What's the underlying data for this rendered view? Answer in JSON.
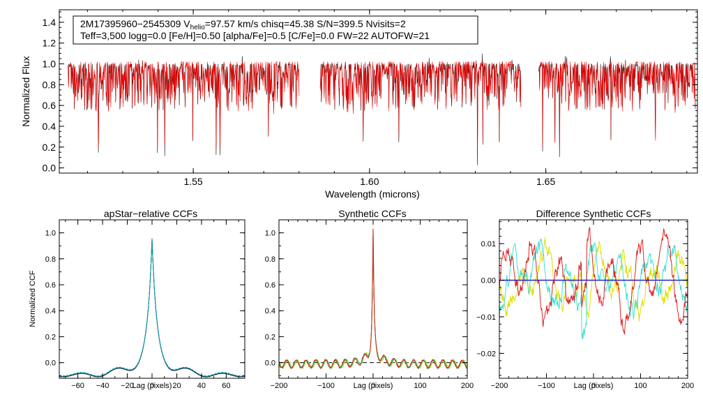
{
  "spectrum": {
    "type": "line",
    "info_line1_pre": "2M17395960−2545309  V",
    "info_line1_sub": "helio",
    "info_line1_post": "=97.57 km/s  chisq=45.38  S/N=399.5  Nvisits=2",
    "info_line2": "Teff=3,500 logg=0.0 [Fe/H]=0.50 [alpha/Fe]=0.5 [C/Fe]=0.0 FW=22 AUTOFW=21",
    "xlabel": "Wavelength (microns)",
    "ylabel": "Normalized Flux",
    "xlim": [
      1.512,
      1.693
    ],
    "ylim": [
      -0.05,
      1.52
    ],
    "xticks": [
      "1.55",
      "1.60",
      "1.65"
    ],
    "xtick_values": [
      1.55,
      1.6,
      1.65
    ],
    "yticks": [
      "0.0",
      "0.2",
      "0.4",
      "0.6",
      "0.8",
      "1.0",
      "1.2",
      "1.4"
    ],
    "ytick_values": [
      0.0,
      0.2,
      0.4,
      0.6,
      0.8,
      1.0,
      1.2,
      1.4
    ],
    "chips": [
      [
        1.5145,
        1.58
      ],
      [
        1.586,
        1.643
      ],
      [
        1.648,
        1.696
      ]
    ],
    "series": [
      {
        "name": "observed spectrum",
        "color": "#000000"
      },
      {
        "name": "synthetic model",
        "color": "#ff0000"
      }
    ]
  },
  "ccf_apstar": {
    "type": "line",
    "title": "apStar−relative CCFs",
    "xlabel": "Lag (pixels)",
    "ylabel": "Normalized CCF",
    "xlim": [
      -75,
      75
    ],
    "ylim": [
      -0.12,
      1.1
    ],
    "xticks": [
      "−60",
      "−40",
      "−20",
      "0",
      "20",
      "40",
      "60"
    ],
    "xtick_values": [
      -60,
      -40,
      -20,
      0,
      20,
      40,
      60
    ],
    "yticks": [
      "0.0",
      "0.2",
      "0.4",
      "0.6",
      "0.8",
      "1.0"
    ],
    "ytick_values": [
      0.0,
      0.2,
      0.4,
      0.6,
      0.8,
      1.0
    ],
    "series": [
      {
        "name": "visit CCF",
        "color": "#000000"
      },
      {
        "name": "visit CCF 2",
        "color": "#1e7fa8"
      },
      {
        "name": "visit CCF 3",
        "color": "#00b0b0"
      }
    ]
  },
  "ccf_synth": {
    "type": "line",
    "title": "Synthetic CCFs",
    "xlabel": "Lag (pixels)",
    "xlim": [
      -200,
      200
    ],
    "ylim": [
      -0.12,
      1.1
    ],
    "xticks": [
      "−200",
      "−100",
      "0",
      "100",
      "200"
    ],
    "xtick_values": [
      -200,
      -100,
      0,
      100,
      200
    ],
    "yticks": [
      "0.0",
      "0.2",
      "0.4",
      "0.6",
      "0.8",
      "1.0"
    ],
    "ytick_values": [
      0.0,
      0.2,
      0.4,
      0.6,
      0.8,
      1.0
    ],
    "zero_line": 0.0,
    "series": [
      {
        "name": "CCF yellow",
        "color": "#d8d800"
      },
      {
        "name": "CCF cyan",
        "color": "#40e0d0"
      },
      {
        "name": "CCF green",
        "color": "#22aa22"
      },
      {
        "name": "CCF red",
        "color": "#dd2222"
      }
    ]
  },
  "ccf_diff": {
    "type": "line",
    "title": "Difference Synthetic CCFs",
    "xlabel": "Lag (pixels)",
    "xlim": [
      -200,
      200
    ],
    "ylim": [
      -0.0268,
      0.0165
    ],
    "xticks": [
      "−200",
      "−100",
      "0",
      "100",
      "200"
    ],
    "xtick_values": [
      -200,
      -100,
      0,
      100,
      200
    ],
    "yticks": [
      "−0.02",
      "−0.01",
      "0.00",
      "0.01"
    ],
    "ytick_values": [
      -0.02,
      -0.01,
      0.0,
      0.01
    ],
    "zero_line": 0.0,
    "series": [
      {
        "name": "diff yellow",
        "color": "#e0e000"
      },
      {
        "name": "diff cyan",
        "color": "#40e0d0"
      },
      {
        "name": "diff red",
        "color": "#dd2222"
      },
      {
        "name": "zero reference",
        "color": "#2222cc"
      }
    ]
  }
}
